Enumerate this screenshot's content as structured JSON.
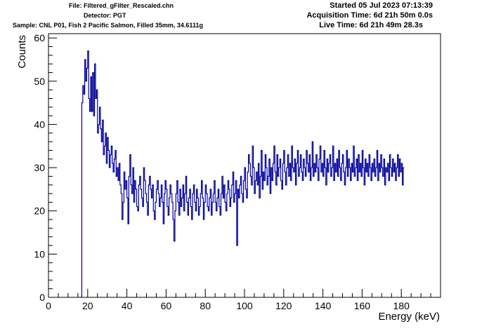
{
  "header": {
    "file": "File: Filtered_gFilter_Rescaled.chn",
    "detector": "Detector: PGT",
    "sample": "Sample: CNL P01, Fish 2 Pacific Salmon, Filled 35mm, 34.6111g",
    "started": "Started 05 Jul 2023 07:13:39",
    "acquisition_time": "Acquisition Time: 6d 21h 50m 0.0s",
    "live_time": "Live Time: 6d 21h 49m 28.3s"
  },
  "chart_data": {
    "type": "line",
    "style": "histogram-step",
    "xlabel": "Energy (keV)",
    "ylabel": "Counts",
    "xlim": [
      0,
      200
    ],
    "ylim": [
      0,
      61
    ],
    "x_ticks": [
      0,
      20,
      40,
      60,
      80,
      100,
      120,
      140,
      160,
      180
    ],
    "y_ticks": [
      0,
      10,
      20,
      30,
      40,
      50,
      60
    ],
    "x_tick_labels": [
      "0",
      "20",
      "40",
      "60",
      "80",
      "100",
      "120",
      "140",
      "160",
      "180"
    ],
    "y_tick_labels": [
      "0",
      "10",
      "20",
      "30",
      "40",
      "50",
      "60"
    ],
    "grid": false,
    "line_color": "#000099",
    "bin_width": 0.5,
    "x_start": 16.5,
    "counts": [
      0,
      45,
      49,
      47,
      55,
      50,
      53,
      57,
      46,
      43,
      51,
      43,
      52,
      42,
      54,
      46,
      48,
      38,
      40,
      44,
      39,
      36,
      41,
      33,
      35,
      38,
      31,
      37,
      34,
      30,
      33,
      35,
      31,
      29,
      32,
      34,
      28,
      30,
      27,
      31,
      26,
      24,
      18,
      22,
      29,
      25,
      27,
      23,
      17,
      28,
      33,
      26,
      24,
      30,
      22,
      27,
      25,
      21,
      20,
      26,
      28,
      25,
      23,
      21,
      30,
      27,
      24,
      22,
      19,
      26,
      28,
      25,
      23,
      26,
      20,
      18,
      22,
      25,
      27,
      24,
      21,
      23,
      26,
      22,
      17,
      24,
      27,
      25,
      21,
      19,
      23,
      26,
      24,
      22,
      18,
      13,
      20,
      24,
      27,
      22,
      19,
      25,
      21,
      23,
      26,
      20,
      24,
      28,
      22,
      19,
      23,
      25,
      21,
      18,
      24,
      26,
      22,
      20,
      25,
      23,
      19,
      21,
      24,
      27,
      23,
      18,
      22,
      26,
      24,
      21,
      20,
      23,
      25,
      19,
      22,
      24,
      27,
      22,
      20,
      23,
      25,
      21,
      19,
      24,
      28,
      23,
      26,
      22,
      20,
      24,
      27,
      25,
      21,
      23,
      26,
      29,
      22,
      24,
      27,
      12,
      25,
      23,
      26,
      28,
      24,
      22,
      27,
      30,
      25,
      23,
      29,
      33,
      31,
      28,
      26,
      35,
      30,
      24,
      27,
      29,
      26,
      31,
      23,
      28,
      34,
      25,
      29,
      27,
      33,
      30,
      26,
      28,
      32,
      24,
      30,
      27,
      31,
      35,
      29,
      26,
      33,
      28,
      30,
      32,
      27,
      25,
      31,
      34,
      29,
      26,
      30,
      33,
      28,
      31,
      27,
      35,
      30,
      29,
      32,
      26,
      31,
      34,
      28,
      30,
      33,
      29,
      27,
      32,
      30,
      28,
      34,
      31,
      29,
      33,
      27,
      30,
      36,
      28,
      31,
      29,
      33,
      30,
      27,
      32,
      35,
      29,
      31,
      28,
      34,
      30,
      26,
      32,
      29,
      31,
      33,
      28,
      30,
      35,
      27,
      31,
      29,
      32,
      28,
      34,
      30,
      27,
      31,
      33,
      29,
      26,
      30,
      34,
      28,
      32,
      30,
      27,
      31,
      29,
      35,
      28,
      30,
      32,
      27,
      33,
      29,
      31,
      28,
      34,
      30,
      26,
      32,
      29,
      31,
      28,
      33,
      30,
      27,
      31,
      29,
      32,
      28,
      30,
      34,
      27,
      31,
      29,
      33,
      30,
      28,
      32,
      26,
      30,
      29,
      31,
      27,
      33,
      30,
      28,
      32,
      29,
      31,
      27,
      30,
      33,
      28,
      32,
      29,
      31,
      26,
      30
    ]
  }
}
